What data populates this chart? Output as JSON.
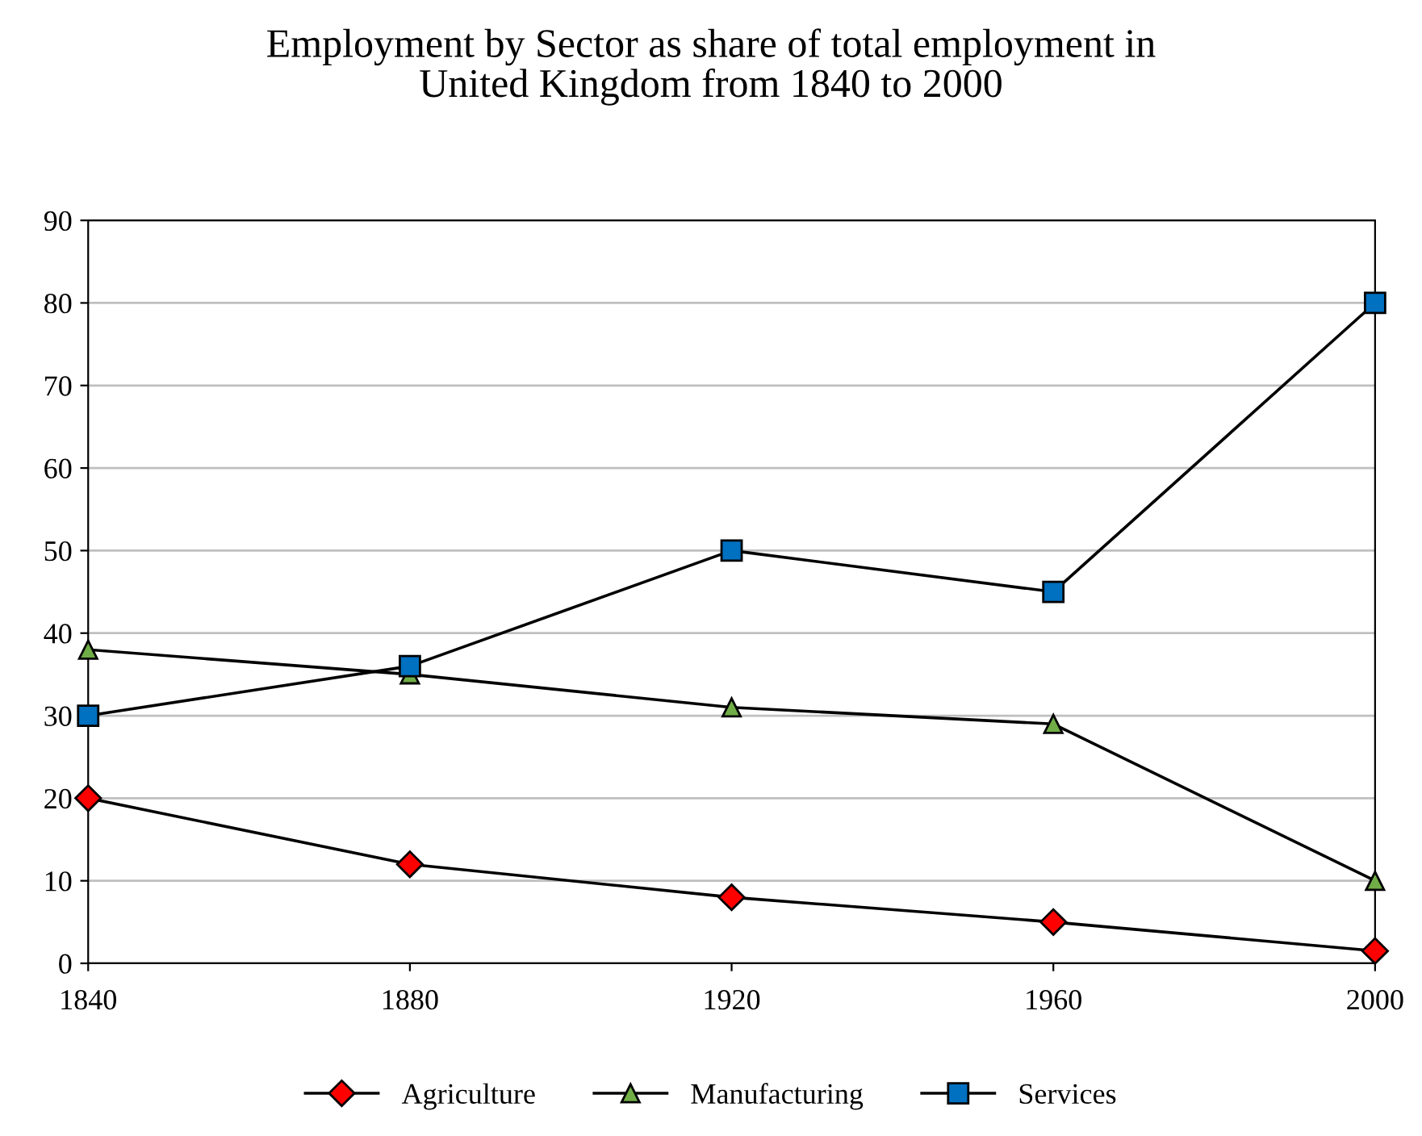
{
  "chart_data": {
    "type": "line",
    "title": "Employment by Sector as share of total employment in\nUnited Kingdom from 1840 to 2000",
    "x": [
      1840,
      1880,
      1920,
      1960,
      2000
    ],
    "series": [
      {
        "name": "Agriculture",
        "color": "#ff0000",
        "marker": "diamond",
        "values": [
          20,
          12,
          8,
          5,
          1.5
        ]
      },
      {
        "name": "Manufacturing",
        "color": "#70ad47",
        "marker": "triangle",
        "values": [
          38,
          35,
          31,
          29,
          10
        ]
      },
      {
        "name": "Services",
        "color": "#0070c0",
        "marker": "square",
        "values": [
          30,
          36,
          50,
          45,
          80
        ]
      }
    ],
    "xlim": [
      1840,
      2000
    ],
    "xticks": [
      1840,
      1880,
      1920,
      1960,
      2000
    ],
    "ylim": [
      0,
      90
    ],
    "yticks": [
      0,
      10,
      20,
      30,
      40,
      50,
      60,
      70,
      80,
      90
    ],
    "grid": "y",
    "legend": "bottom",
    "line_style": "solid"
  }
}
